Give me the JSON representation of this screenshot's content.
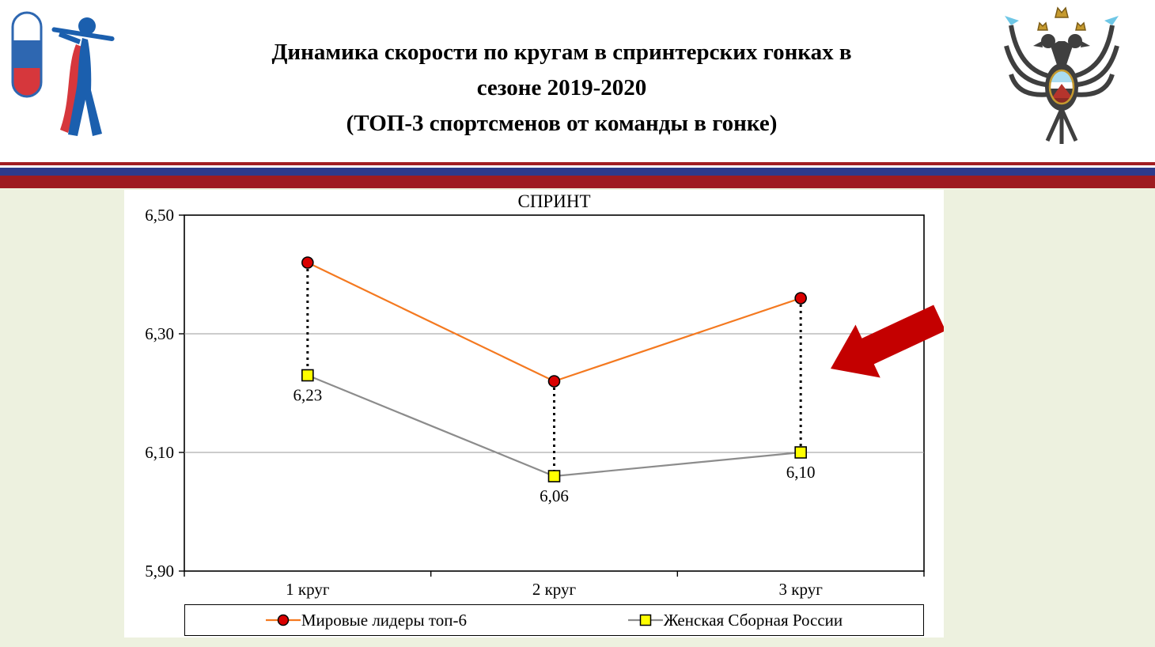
{
  "slide": {
    "title_lines": [
      "Динамика скорости по кругам в спринтерских гонках в",
      "сезоне 2019-2020",
      "(ТОП-3 спортсменов от команды в гонке)"
    ]
  },
  "colors": {
    "background": "#edf1df",
    "stripe_red_thin": "#a21d22",
    "stripe_blue": "#2d3a8c",
    "stripe_red_thick": "#9e1b20",
    "arrow_red": "#c40000"
  },
  "chart_data": {
    "type": "line",
    "title": "СПРИНТ",
    "categories": [
      "1 круг",
      "2 круг",
      "3 круг"
    ],
    "series": [
      {
        "name": "Мировые лидеры топ-6",
        "values": [
          6.42,
          6.22,
          6.36
        ],
        "color": "#f47920",
        "marker": "circle",
        "marker_fill": "#d90000"
      },
      {
        "name": "Женская Сборная России",
        "values": [
          6.23,
          6.06,
          6.1
        ],
        "color": "#8c8c8c",
        "marker": "square",
        "marker_fill": "#ffff00"
      }
    ],
    "data_labels": {
      "series": "Женская Сборная России",
      "values": [
        "6,23",
        "6,06",
        "6,10"
      ]
    },
    "ylim": [
      5.9,
      6.5
    ],
    "yticks": [
      {
        "value": 6.5,
        "label": "6,50"
      },
      {
        "value": 6.3,
        "label": "6,30"
      },
      {
        "value": 6.1,
        "label": "6,10"
      },
      {
        "value": 5.9,
        "label": "5,90"
      }
    ],
    "gridline_values": [
      6.3,
      6.1
    ],
    "grid": true,
    "legend_position": "bottom",
    "annotations": [
      {
        "type": "block-arrow",
        "color": "#c40000",
        "direction": "down-left",
        "points_to": "3 круг"
      }
    ]
  }
}
